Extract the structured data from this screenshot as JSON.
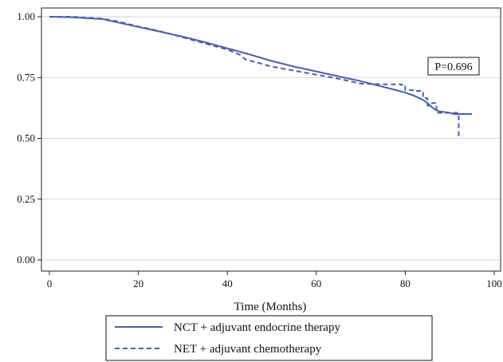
{
  "chart_data": {
    "type": "line",
    "title": "",
    "xlabel": "Time (Months)",
    "ylabel": "",
    "xlim": [
      0,
      100
    ],
    "ylim": [
      0,
      1
    ],
    "x_ticks": [
      0,
      20,
      40,
      60,
      80,
      100
    ],
    "x_tick_labels": [
      "0",
      "20",
      "40",
      "60",
      "80",
      "100"
    ],
    "y_ticks": [
      0,
      0.25,
      0.5,
      0.75,
      1
    ],
    "y_tick_labels": [
      "0.00",
      "0.25",
      "0.50",
      "0.75",
      "1.00"
    ],
    "grid": true,
    "annotation": "P=0.696",
    "legend_position": "bottom",
    "series": [
      {
        "name": "NCT + adjuvant endocrine therapy",
        "color": "#4a5fb0",
        "line_style": "solid",
        "x": [
          0,
          5,
          12,
          15,
          20,
          25,
          30,
          35,
          40,
          45,
          50,
          55,
          60,
          65,
          70,
          75,
          78,
          80,
          82,
          84,
          85,
          86,
          87,
          88,
          89,
          90,
          91,
          92,
          95
        ],
        "y": [
          1.0,
          0.998,
          0.99,
          0.978,
          0.958,
          0.938,
          0.918,
          0.895,
          0.87,
          0.845,
          0.818,
          0.795,
          0.775,
          0.755,
          0.735,
          0.712,
          0.698,
          0.688,
          0.675,
          0.658,
          0.645,
          0.628,
          0.615,
          0.61,
          0.608,
          0.605,
          0.6,
          0.6,
          0.6
        ]
      },
      {
        "name": "NET + adjuvant chemotherapy",
        "color": "#4a5fb0",
        "line_style": "dashed",
        "x": [
          0,
          5,
          12,
          15,
          20,
          25,
          30,
          35,
          40,
          43,
          44,
          46,
          50,
          55,
          60,
          65,
          70,
          75,
          79,
          80,
          82,
          84,
          85,
          86,
          87,
          88,
          89,
          90,
          91,
          92
        ],
        "y": [
          1.0,
          1.0,
          0.992,
          0.982,
          0.96,
          0.94,
          0.915,
          0.89,
          0.865,
          0.842,
          0.825,
          0.815,
          0.795,
          0.778,
          0.762,
          0.745,
          0.725,
          0.722,
          0.72,
          0.698,
          0.695,
          0.665,
          0.635,
          0.645,
          0.605,
          0.605,
          0.605,
          0.605,
          0.605,
          0.505
        ]
      }
    ]
  }
}
